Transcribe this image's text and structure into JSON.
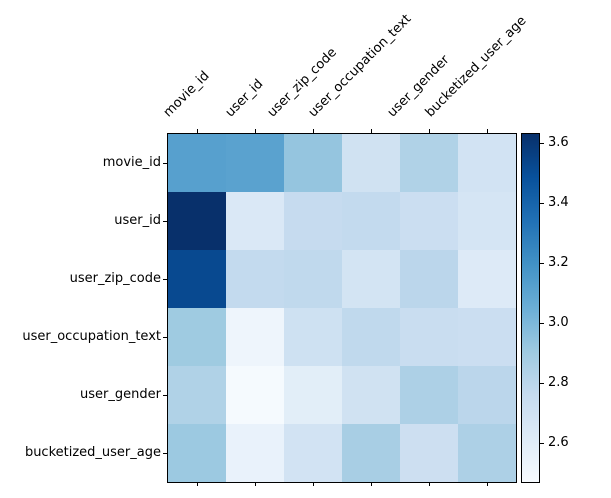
{
  "chart_data": {
    "type": "heatmap",
    "title": "",
    "xlabel": "",
    "ylabel": "",
    "rows": [
      "movie_id",
      "user_id",
      "user_zip_code",
      "user_occupation_text",
      "user_gender",
      "bucketized_user_age"
    ],
    "columns": [
      "movie_id",
      "user_id",
      "user_zip_code",
      "user_occupation_text",
      "user_gender",
      "bucketized_user_age"
    ],
    "values": [
      [
        3.12,
        3.11,
        2.93,
        2.7,
        2.84,
        2.69
      ],
      [
        3.63,
        2.64,
        2.76,
        2.77,
        2.73,
        2.67
      ],
      [
        3.52,
        2.77,
        2.78,
        2.68,
        2.8,
        2.62
      ],
      [
        2.9,
        2.52,
        2.71,
        2.78,
        2.74,
        2.73
      ],
      [
        2.84,
        2.48,
        2.59,
        2.7,
        2.85,
        2.8
      ],
      [
        2.91,
        2.55,
        2.69,
        2.87,
        2.72,
        2.85
      ]
    ],
    "vmin": 2.47,
    "vmax": 3.63,
    "colormap": "Blues",
    "colormap_colors": [
      "#f7fbff",
      "#deebf7",
      "#c6dbef",
      "#9ecae1",
      "#6baed6",
      "#4292c6",
      "#2171b5",
      "#08519c",
      "#08306b"
    ],
    "grid": false,
    "x_tick_label_rotation": 45,
    "x_tick_label_side": "top",
    "colorbar": {
      "position": "right",
      "ticks": [
        3.6,
        3.4,
        3.2,
        3.0,
        2.8,
        2.6
      ],
      "tick_labels": [
        "3.6",
        "3.4",
        "3.2",
        "3.0",
        "2.8",
        "2.6"
      ]
    }
  }
}
